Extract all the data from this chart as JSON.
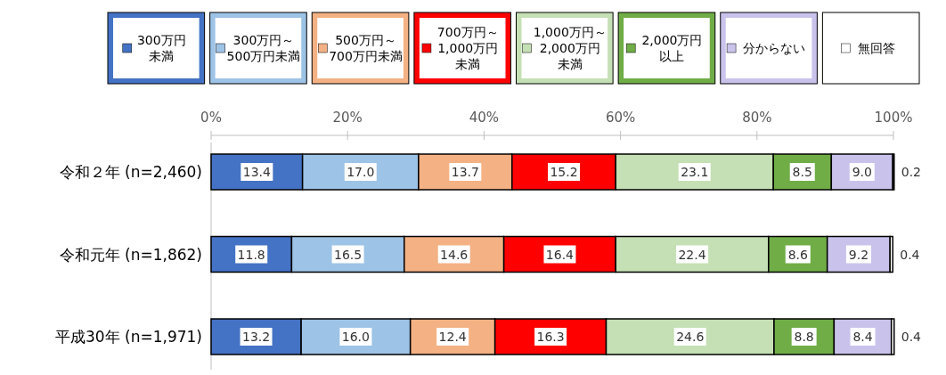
{
  "chart_data": {
    "type": "bar",
    "orientation": "horizontal",
    "stacked": true,
    "legend": "top",
    "grid": false,
    "categories": [
      "令和２年 (n=2,460)",
      "令和元年 (n=1,862)",
      "平成30年 (n=1,971)"
    ],
    "xlim": [
      0,
      100
    ],
    "xticks": [
      {
        "value": 0,
        "label": "0%"
      },
      {
        "value": 20,
        "label": "20%"
      },
      {
        "value": 40,
        "label": "40%"
      },
      {
        "value": 60,
        "label": "60%"
      },
      {
        "value": 80,
        "label": "80%"
      },
      {
        "value": 100,
        "label": "100%"
      }
    ],
    "series": [
      {
        "name": "300万円未満",
        "color": "#4472c4",
        "values": [
          13.4,
          11.8,
          13.2
        ],
        "value_labels": [
          "13.4",
          "11.8",
          "13.2"
        ]
      },
      {
        "name": "300万円～500万円未満",
        "color": "#9dc3e6",
        "values": [
          17.0,
          16.5,
          16.0
        ],
        "value_labels": [
          "17.0",
          "16.5",
          "16.0"
        ]
      },
      {
        "name": "500万円～700万円未満",
        "color": "#f4b183",
        "values": [
          13.7,
          14.6,
          12.4
        ],
        "value_labels": [
          "13.7",
          "14.6",
          "12.4"
        ]
      },
      {
        "name": "700万円～1,000万円未満",
        "color": "#ff0000",
        "values": [
          15.2,
          16.4,
          16.3
        ],
        "value_labels": [
          "15.2",
          "16.4",
          "16.3"
        ]
      },
      {
        "name": "1,000万円～2,000万円未満",
        "color": "#c5e0b4",
        "values": [
          23.1,
          22.4,
          24.6
        ],
        "value_labels": [
          "23.1",
          "22.4",
          "24.6"
        ]
      },
      {
        "name": "2,000万円以上",
        "color": "#70ad47",
        "values": [
          8.5,
          8.6,
          8.8
        ],
        "value_labels": [
          "8.5",
          "8.6",
          "8.8"
        ]
      },
      {
        "name": "分からない",
        "color": "#c9c3ec",
        "values": [
          9.0,
          9.2,
          8.4
        ],
        "value_labels": [
          "9.0",
          "9.2",
          "8.4"
        ]
      },
      {
        "name": "無回答",
        "color": "#ffffff",
        "values": [
          0.2,
          0.4,
          0.4
        ],
        "value_labels": [
          "0.2",
          "0.4",
          "0.4"
        ]
      }
    ]
  }
}
